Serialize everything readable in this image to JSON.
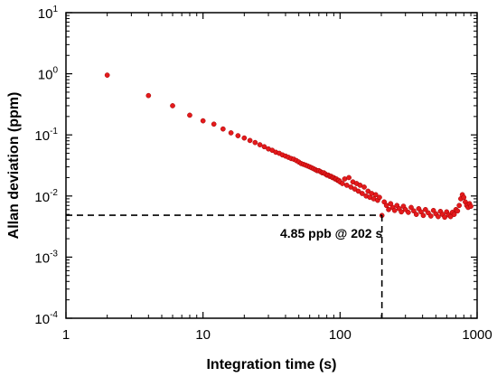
{
  "chart_data": {
    "type": "scatter",
    "title": "",
    "xlabel": "Integration time (s)",
    "ylabel": "Allan deviation (ppm)",
    "x_scale": "log",
    "y_scale": "log",
    "xlim": [
      1,
      1000
    ],
    "ylim": [
      0.0001,
      10
    ],
    "x_ticks": [
      {
        "value": 1,
        "label": "1"
      },
      {
        "value": 10,
        "label": "10"
      },
      {
        "value": 100,
        "label": "100"
      },
      {
        "value": 1000,
        "label": "1000"
      }
    ],
    "y_ticks": [
      {
        "value": 0.0001,
        "base": "10",
        "exp": "-4"
      },
      {
        "value": 0.001,
        "base": "10",
        "exp": "-3"
      },
      {
        "value": 0.01,
        "base": "10",
        "exp": "-2"
      },
      {
        "value": 0.1,
        "base": "10",
        "exp": "-1"
      },
      {
        "value": 1,
        "base": "10",
        "exp": "0"
      },
      {
        "value": 10,
        "base": "10",
        "exp": "1"
      }
    ],
    "grid": false,
    "marker_color": "#e41a1c",
    "series": [
      {
        "points": [
          [
            2,
            0.95
          ],
          [
            4,
            0.44
          ],
          [
            6,
            0.3
          ],
          [
            8,
            0.21
          ],
          [
            10,
            0.17
          ],
          [
            12,
            0.15
          ],
          [
            14,
            0.125
          ],
          [
            16,
            0.108
          ],
          [
            18,
            0.097
          ],
          [
            20,
            0.089
          ],
          [
            22,
            0.081
          ],
          [
            24,
            0.075
          ],
          [
            26,
            0.069
          ],
          [
            28,
            0.064
          ],
          [
            30,
            0.059
          ],
          [
            32,
            0.056
          ],
          [
            34,
            0.052
          ],
          [
            36,
            0.05
          ],
          [
            38,
            0.047
          ],
          [
            40,
            0.045
          ],
          [
            42,
            0.043
          ],
          [
            44,
            0.041
          ],
          [
            46,
            0.04
          ],
          [
            48,
            0.038
          ],
          [
            50,
            0.036
          ],
          [
            52,
            0.034
          ],
          [
            54,
            0.033
          ],
          [
            56,
            0.032
          ],
          [
            58,
            0.031
          ],
          [
            60,
            0.03
          ],
          [
            62,
            0.029
          ],
          [
            64,
            0.028
          ],
          [
            66,
            0.027
          ],
          [
            68,
            0.026
          ],
          [
            70,
            0.026
          ],
          [
            72,
            0.025
          ],
          [
            74,
            0.024
          ],
          [
            76,
            0.024
          ],
          [
            78,
            0.023
          ],
          [
            80,
            0.022
          ],
          [
            82,
            0.022
          ],
          [
            84,
            0.021
          ],
          [
            86,
            0.021
          ],
          [
            88,
            0.02
          ],
          [
            90,
            0.02
          ],
          [
            92,
            0.019
          ],
          [
            94,
            0.019
          ],
          [
            96,
            0.018
          ],
          [
            98,
            0.018
          ],
          [
            100,
            0.017
          ],
          [
            104,
            0.016
          ],
          [
            108,
            0.019
          ],
          [
            112,
            0.015
          ],
          [
            116,
            0.02
          ],
          [
            120,
            0.014
          ],
          [
            124,
            0.017
          ],
          [
            128,
            0.013
          ],
          [
            132,
            0.016
          ],
          [
            136,
            0.012
          ],
          [
            140,
            0.015
          ],
          [
            145,
            0.011
          ],
          [
            150,
            0.014
          ],
          [
            155,
            0.01
          ],
          [
            160,
            0.012
          ],
          [
            165,
            0.0095
          ],
          [
            170,
            0.011
          ],
          [
            176,
            0.009
          ],
          [
            182,
            0.0105
          ],
          [
            188,
            0.0085
          ],
          [
            194,
            0.0095
          ],
          [
            202,
            0.0048
          ],
          [
            210,
            0.008
          ],
          [
            218,
            0.007
          ],
          [
            226,
            0.006
          ],
          [
            234,
            0.0075
          ],
          [
            242,
            0.0065
          ],
          [
            250,
            0.0058
          ],
          [
            260,
            0.007
          ],
          [
            270,
            0.0062
          ],
          [
            280,
            0.0055
          ],
          [
            290,
            0.0068
          ],
          [
            300,
            0.006
          ],
          [
            315,
            0.0054
          ],
          [
            330,
            0.0065
          ],
          [
            345,
            0.0057
          ],
          [
            360,
            0.005
          ],
          [
            375,
            0.0062
          ],
          [
            390,
            0.0055
          ],
          [
            405,
            0.0048
          ],
          [
            420,
            0.006
          ],
          [
            440,
            0.0053
          ],
          [
            460,
            0.0047
          ],
          [
            480,
            0.0058
          ],
          [
            500,
            0.0051
          ],
          [
            520,
            0.0046
          ],
          [
            540,
            0.0056
          ],
          [
            560,
            0.005
          ],
          [
            580,
            0.0045
          ],
          [
            600,
            0.0055
          ],
          [
            620,
            0.0049
          ],
          [
            640,
            0.0046
          ],
          [
            660,
            0.0054
          ],
          [
            680,
            0.005
          ],
          [
            700,
            0.006
          ],
          [
            720,
            0.0057
          ],
          [
            740,
            0.007
          ],
          [
            760,
            0.009
          ],
          [
            780,
            0.0105
          ],
          [
            800,
            0.0095
          ],
          [
            820,
            0.008
          ],
          [
            840,
            0.007
          ],
          [
            860,
            0.0065
          ],
          [
            880,
            0.0075
          ],
          [
            900,
            0.0068
          ]
        ]
      }
    ],
    "annotation": {
      "text": "4.85 ppb @ 202 s",
      "x": 202,
      "y": 0.00485
    }
  }
}
